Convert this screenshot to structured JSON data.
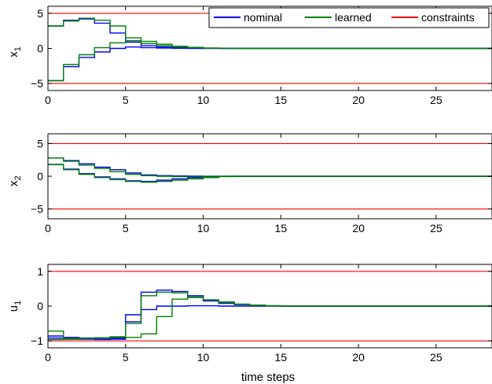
{
  "chart_data": [
    {
      "type": "line",
      "ylabel": "x",
      "ylabel_sub": "1",
      "xlabel": "",
      "xlim": [
        0,
        28.6
      ],
      "ylim": [
        -6,
        6
      ],
      "xticks": [
        0,
        5,
        10,
        15,
        20,
        25
      ],
      "yticks": [
        -5,
        0,
        5
      ],
      "xtick_labels": [
        "0",
        "5",
        "10",
        "15",
        "20",
        "25"
      ],
      "ytick_labels": [
        "−5",
        "0",
        "5"
      ],
      "grid": false,
      "legend": {
        "placement": "top-right",
        "entries": [
          {
            "name": "nominal",
            "color": "#0000ff"
          },
          {
            "name": "learned",
            "color": "#008000"
          },
          {
            "name": "constraints",
            "color": "#ff0000"
          }
        ]
      },
      "constraints": [
        5,
        -5
      ],
      "series": [
        {
          "name": "nominal",
          "color": "#0000ff",
          "values": [
            3.2,
            4.0,
            4.2,
            3.6,
            2.2,
            0.9,
            0.4,
            0.2,
            0.1,
            0.05,
            0.02,
            0,
            0,
            0,
            0,
            0,
            0,
            0,
            0,
            0,
            0,
            0,
            0,
            0,
            0,
            0,
            0,
            0,
            0
          ]
        },
        {
          "name": "nominal",
          "color": "#0000ff",
          "values": [
            -4.6,
            -2.6,
            -1.3,
            -0.5,
            0,
            0.2,
            0.1,
            0.05,
            0.02,
            0,
            0,
            0,
            0,
            0,
            0,
            0,
            0,
            0,
            0,
            0,
            0,
            0,
            0,
            0,
            0,
            0,
            0,
            0,
            0
          ]
        },
        {
          "name": "learned",
          "color": "#008000",
          "values": [
            3.2,
            3.9,
            4.3,
            4.0,
            3.2,
            1.5,
            1.0,
            0.6,
            0.3,
            0.15,
            0.05,
            0.02,
            0,
            0,
            0,
            0,
            0,
            0,
            0,
            0,
            0,
            0,
            0,
            0,
            0,
            0,
            0,
            0,
            0
          ]
        },
        {
          "name": "learned",
          "color": "#008000",
          "values": [
            -4.6,
            -2.3,
            -0.9,
            0.1,
            0.8,
            1.1,
            0.7,
            0.4,
            0.2,
            0.1,
            0.04,
            0.01,
            0,
            0,
            0,
            0,
            0,
            0,
            0,
            0,
            0,
            0,
            0,
            0,
            0,
            0,
            0,
            0,
            0
          ]
        }
      ]
    },
    {
      "type": "line",
      "ylabel": "x",
      "ylabel_sub": "2",
      "xlabel": "",
      "xlim": [
        0,
        28.6
      ],
      "ylim": [
        -6.5,
        6.5
      ],
      "xticks": [
        0,
        5,
        10,
        15,
        20,
        25
      ],
      "yticks": [
        -5,
        0,
        5
      ],
      "xtick_labels": [
        "0",
        "5",
        "10",
        "15",
        "20",
        "25"
      ],
      "ytick_labels": [
        "−5",
        "0",
        "5"
      ],
      "grid": false,
      "constraints": [
        5,
        -5
      ],
      "series": [
        {
          "name": "nominal",
          "color": "#0000ff",
          "values": [
            2.8,
            2.4,
            1.9,
            1.4,
            1.0,
            0.5,
            0.2,
            0.1,
            0.05,
            0.02,
            0.01,
            0,
            0,
            0,
            0,
            0,
            0,
            0,
            0,
            0,
            0,
            0,
            0,
            0,
            0,
            0,
            0,
            0,
            0
          ]
        },
        {
          "name": "nominal",
          "color": "#0000ff",
          "values": [
            1.8,
            1.1,
            0.4,
            -0.1,
            -0.4,
            -0.7,
            -0.8,
            -0.6,
            -0.4,
            -0.2,
            -0.1,
            -0.03,
            0,
            0,
            0,
            0,
            0,
            0,
            0,
            0,
            0,
            0,
            0,
            0,
            0,
            0,
            0,
            0,
            0
          ]
        },
        {
          "name": "learned",
          "color": "#008000",
          "values": [
            2.8,
            2.3,
            1.7,
            1.2,
            0.7,
            0.3,
            0.1,
            0,
            -0.05,
            -0.05,
            -0.02,
            0,
            0,
            0,
            0,
            0,
            0,
            0,
            0,
            0,
            0,
            0,
            0,
            0,
            0,
            0,
            0,
            0,
            0
          ]
        },
        {
          "name": "learned",
          "color": "#008000",
          "values": [
            1.8,
            1.0,
            0.3,
            -0.2,
            -0.5,
            -0.8,
            -0.9,
            -0.8,
            -0.6,
            -0.4,
            -0.2,
            -0.05,
            0,
            0,
            0,
            0,
            0,
            0,
            0,
            0,
            0,
            0,
            0,
            0,
            0,
            0,
            0,
            0,
            0
          ]
        }
      ]
    },
    {
      "type": "line",
      "ylabel": "u",
      "ylabel_sub": "1",
      "xlabel": "time steps",
      "xlim": [
        0,
        28.6
      ],
      "ylim": [
        -1.2,
        1.2
      ],
      "xticks": [
        0,
        5,
        10,
        15,
        20,
        25
      ],
      "yticks": [
        -1,
        0,
        1
      ],
      "xtick_labels": [
        "0",
        "5",
        "10",
        "15",
        "20",
        "25"
      ],
      "ytick_labels": [
        "−1",
        "0",
        "1"
      ],
      "grid": false,
      "constraints": [
        1,
        -1
      ],
      "series": [
        {
          "name": "nominal",
          "color": "#0000ff",
          "values": [
            -0.92,
            -0.95,
            -0.95,
            -0.96,
            -0.95,
            -0.45,
            0.4,
            0.46,
            0.42,
            0.3,
            0.15,
            0.08,
            0.04,
            0.02,
            0.01,
            0,
            0,
            0,
            0,
            0,
            0,
            0,
            0,
            0,
            0,
            0,
            0,
            0,
            0
          ]
        },
        {
          "name": "nominal",
          "color": "#0000ff",
          "values": [
            -0.86,
            -0.9,
            -0.92,
            -0.93,
            -0.93,
            -0.25,
            -0.1,
            0.0,
            0.0,
            0.01,
            0.01,
            0,
            0,
            0,
            0,
            0,
            0,
            0,
            0,
            0,
            0,
            0,
            0,
            0,
            0,
            0,
            0,
            0,
            0
          ]
        },
        {
          "name": "learned",
          "color": "#008000",
          "values": [
            -0.72,
            -0.93,
            -0.92,
            -0.91,
            -0.88,
            -0.5,
            0.3,
            0.4,
            0.38,
            0.25,
            0.18,
            0.12,
            0.06,
            0.03,
            0.01,
            0,
            0,
            0,
            0,
            0,
            0,
            0,
            0,
            0,
            0,
            0,
            0,
            0,
            0
          ]
        },
        {
          "name": "learned",
          "color": "#008000",
          "values": [
            -0.96,
            -0.95,
            -0.93,
            -0.92,
            -0.9,
            -0.9,
            -0.8,
            -0.3,
            0.2,
            0.26,
            0.18,
            0.1,
            0.05,
            0.02,
            0.01,
            0,
            0,
            0,
            0,
            0,
            0,
            0,
            0,
            0,
            0,
            0,
            0,
            0,
            0
          ]
        }
      ]
    }
  ]
}
